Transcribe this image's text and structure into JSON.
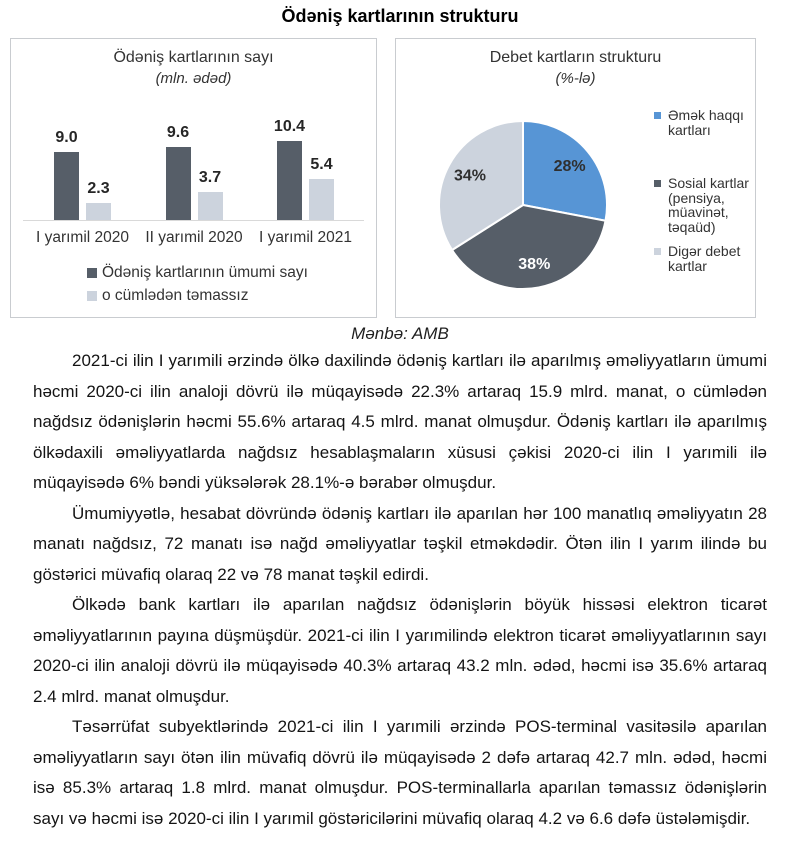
{
  "document": {
    "title": "Ödəniş kartlarının strukturu",
    "source_note": "Mənbə: AMB",
    "paragraphs": [
      "2021-ci ilin I yarımili ərzində ölkə daxilində ödəniş kartları ilə aparılmış əməliyyatların ümumi həcmi 2020-ci ilin analoji dövrü ilə müqayisədə 22.3% artaraq 15.9 mlrd. manat, o cümlədən nağdsız ödənişlərin həcmi 55.6% artaraq 4.5 mlrd. manat olmuşdur. Ödəniş kartları ilə aparılmış ölkədaxili əməliyyatlarda nağdsız hesablaşmaların xüsusi çəkisi 2020-ci ilin I yarımili ilə müqayisədə 6% bəndi yüksələrək 28.1%-ə bərabər olmuşdur.",
      "Ümumiyyətlə, hesabat dövründə ödəniş kartları ilə aparılan hər 100 manatlıq əməliyyatın 28 manatı nağdsız, 72 manatı isə nağd əməliyyatlar təşkil etməkdədir. Ötən ilin I yarım ilində bu göstərici müvafiq olaraq 22 və 78 manat təşkil edirdi.",
      "Ölkədə bank kartları ilə aparılan nağdsız ödənişlərin böyük hissəsi elektron ticarət əməliyyatlarının payına düşmüşdür. 2021-ci ilin I yarımilində elektron ticarət əməliyyatlarının sayı 2020-ci ilin analoji dövrü ilə müqayisədə 40.3% artaraq 43.2 mln. ədəd, həcmi isə 35.6% artaraq 2.4 mlrd. manat olmuşdur.",
      "Təsərrüfat subyektlərində 2021-ci ilin I yarımili ərzində POS-terminal vasitəsilə aparılan əməliyyatların sayı ötən ilin müvafiq dövrü ilə müqayisədə 2 dəfə artaraq 42.7 mln. ədəd, həcmi isə 85.3% artaraq 1.8 mlrd. manat olmuşdur. POS-terminallarla aparılan təmassız ödənişlərin sayı və həcmi isə 2020-ci ilin I yarımil göstəricilərini müvafiq olaraq 4.2 və 6.6 dəfə üstələmişdir."
    ]
  },
  "chart_data": [
    {
      "type": "bar",
      "title": "Ödəniş kartlarının sayı",
      "subtitle": "(mln. ədəd)",
      "categories": [
        "I yarımil 2020",
        "II yarımil 2020",
        "I yarımil 2021"
      ],
      "series": [
        {
          "name": "Ödəniş kartlarının ümumi sayı",
          "color": "#565e68",
          "values": [
            9.0,
            9.6,
            10.4
          ]
        },
        {
          "name": "o cümlədən təmassız",
          "color": "#ccd3dd",
          "values": [
            2.3,
            3.7,
            5.4
          ]
        }
      ],
      "ylim": [
        0,
        12
      ],
      "grid": false,
      "legend_position": "bottom",
      "value_label_decimals": 1
    },
    {
      "type": "pie",
      "title": "Debet kartların strukturu",
      "subtitle": "(%-lə)",
      "slices": [
        {
          "label": "Əmək haqqı kartları",
          "value": 28,
          "display": "28%",
          "color": "#5795d5",
          "label_color": "#2f2f2f"
        },
        {
          "label": "Sosial kartlar (pensiya, müavinət, təqaüd)",
          "value": 38,
          "display": "38%",
          "color": "#565e68",
          "label_color": "#ffffff"
        },
        {
          "label": "Digər debet kartlar",
          "value": 34,
          "display": "34%",
          "color": "#ccd3dd",
          "label_color": "#2f2f2f"
        }
      ],
      "start_angle_deg": 0,
      "direction": "clockwise",
      "legend_position": "right"
    }
  ]
}
